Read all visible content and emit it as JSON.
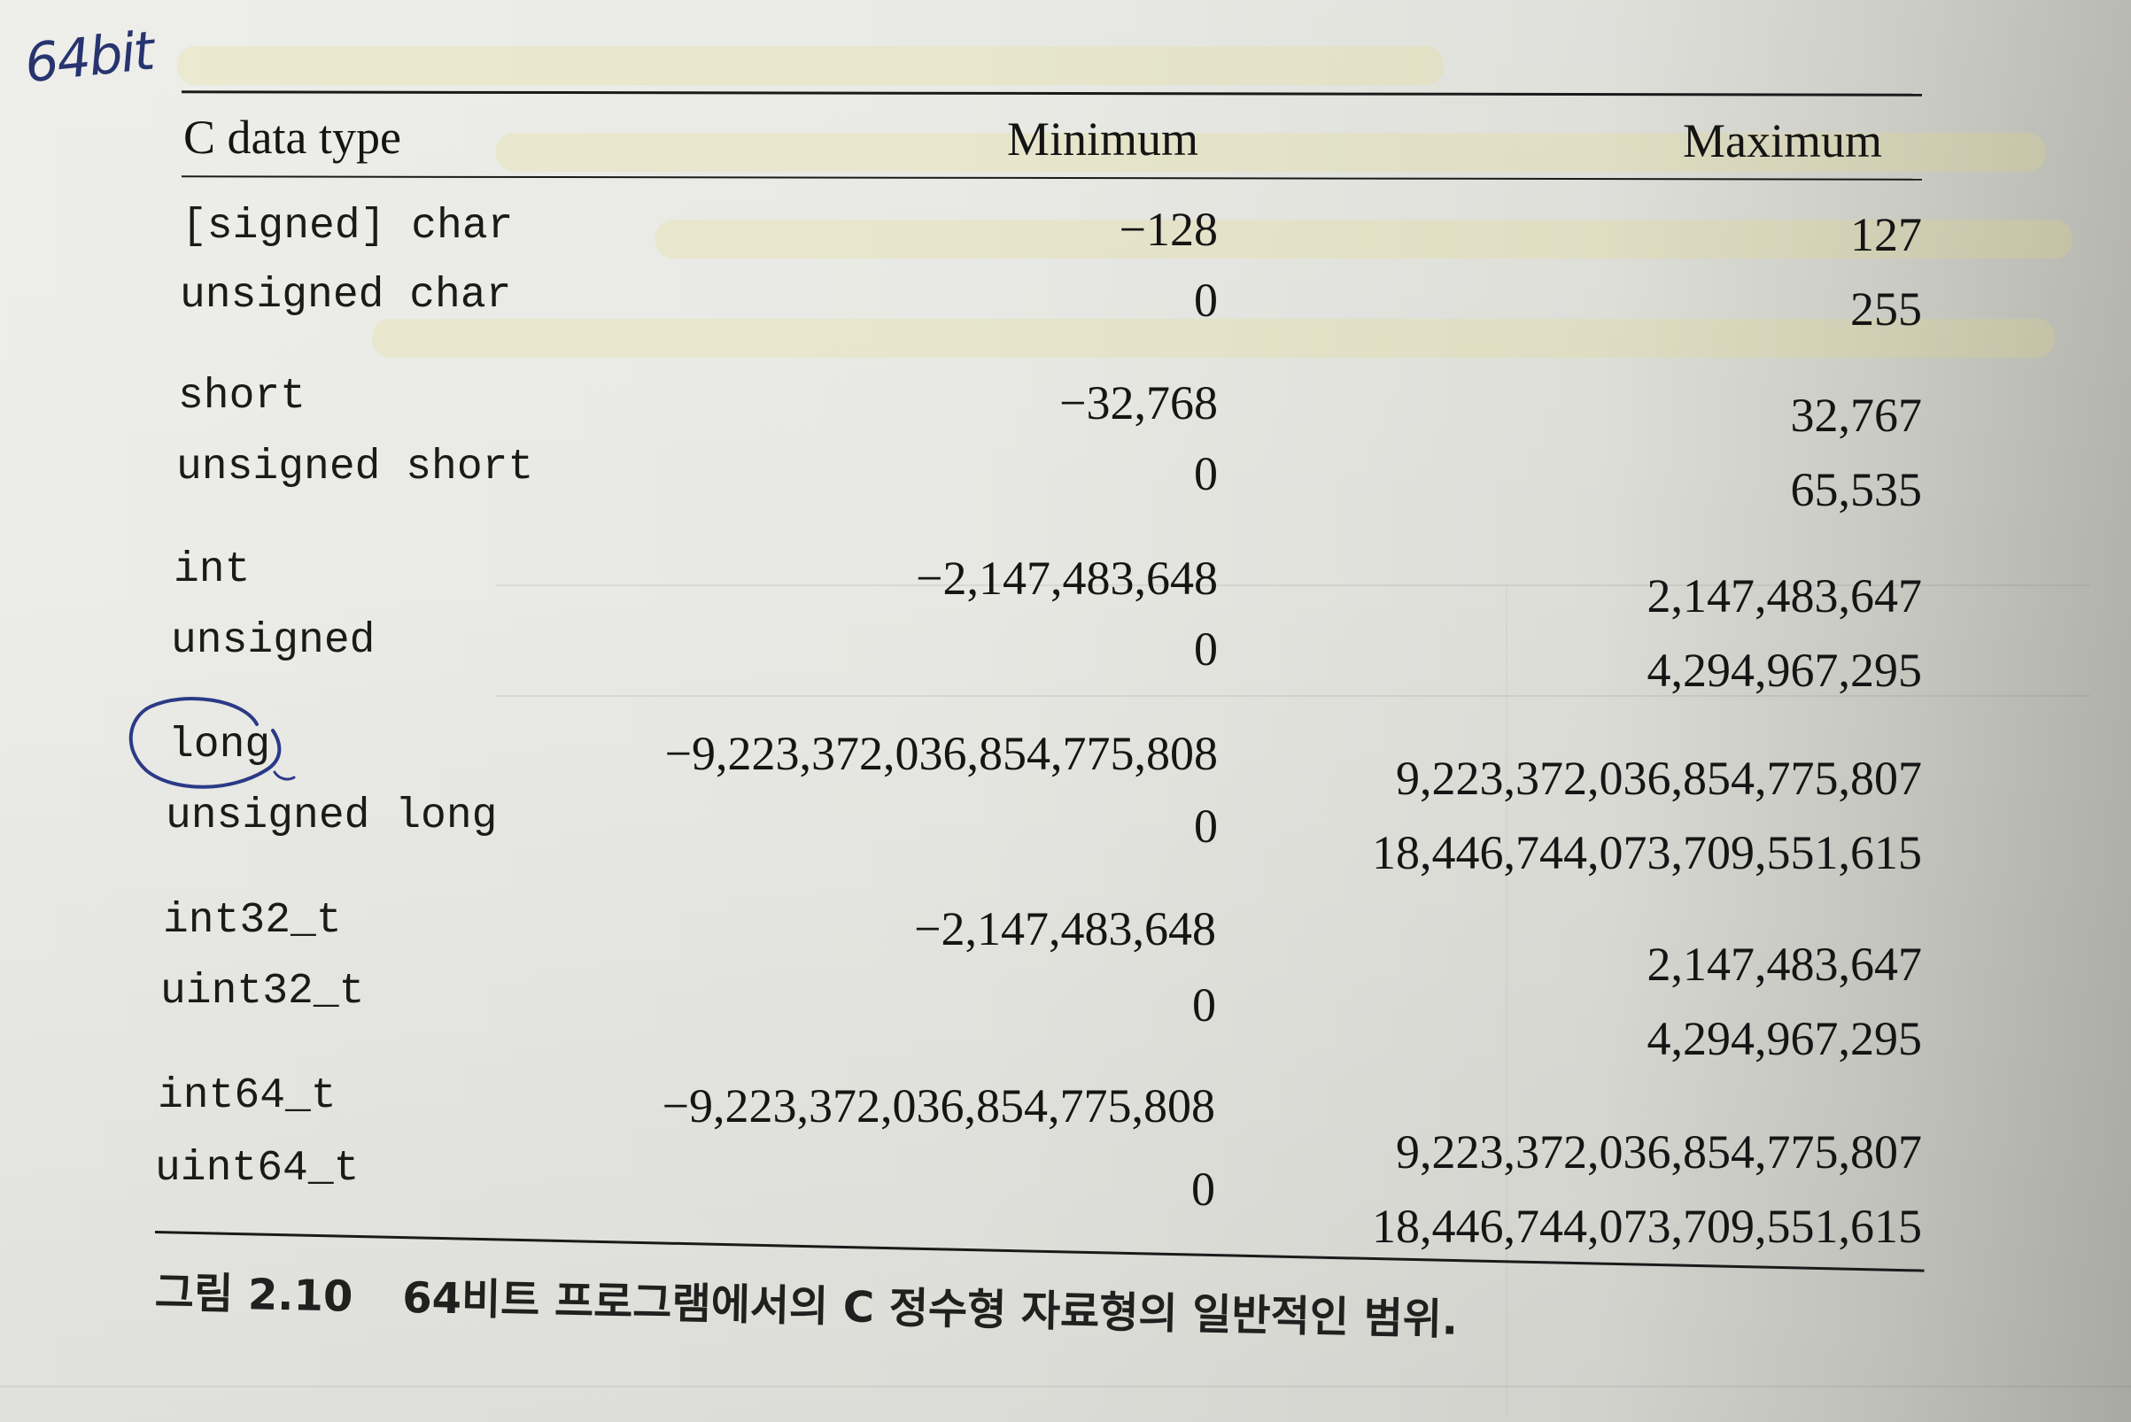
{
  "annotation": {
    "handwritten_note": "64bit"
  },
  "table": {
    "headers": {
      "type": "C data type",
      "min": "Minimum",
      "max": "Maximum"
    },
    "rows": [
      {
        "type": "[signed] char",
        "min": "−128",
        "max": "127"
      },
      {
        "type": "unsigned char",
        "min": "0",
        "max": "255"
      },
      {
        "type": "short",
        "min": "−32,768",
        "max": "32,767"
      },
      {
        "type": "unsigned short",
        "min": "0",
        "max": "65,535"
      },
      {
        "type": "int",
        "min": "−2,147,483,648",
        "max": "2,147,483,647"
      },
      {
        "type": "unsigned",
        "min": "0",
        "max": "4,294,967,295"
      },
      {
        "type": "long",
        "min": "−9,223,372,036,854,775,808",
        "max": "9,223,372,036,854,775,807"
      },
      {
        "type": "unsigned long",
        "min": "0",
        "max": "18,446,744,073,709,551,615"
      },
      {
        "type": "int32_t",
        "min": "−2,147,483,648",
        "max": "2,147,483,647"
      },
      {
        "type": "uint32_t",
        "min": "0",
        "max": "4,294,967,295"
      },
      {
        "type": "int64_t",
        "min": "−9,223,372,036,854,775,808",
        "max": "9,223,372,036,854,775,807"
      },
      {
        "type": "uint64_t",
        "min": "0",
        "max": "18,446,744,073,709,551,615"
      }
    ]
  },
  "caption": {
    "number": "그림 2.10",
    "text": "64비트 프로그램에서의 C 정수형 자료형의 일반적인 범위."
  }
}
